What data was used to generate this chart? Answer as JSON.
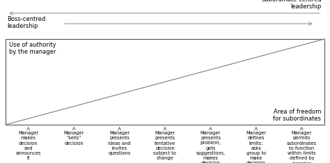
{
  "boss_label": "Boss-centred\nleadership",
  "subordinate_label": "Subordinate-centred\nleadership",
  "authority_label": "Use of authority\nby the manager",
  "freedom_label": "Area of freedom\nfor subordinates",
  "arrow_color": "#888888",
  "box_edge_color": "#555555",
  "bg_color": "#ffffff",
  "text_color": "#000000",
  "columns": [
    {
      "label": "Manager\nmakes\ndecision\nand\nannounces\nit"
    },
    {
      "label": "Manager\n“sells”\ndecision"
    },
    {
      "label": "Manager\npresents\nideas and\ninvites\nquestions"
    },
    {
      "label": "Manager\npresents\ntentative\ndecision\nsubject to\nchange"
    },
    {
      "label": "Manager\npresents\nproblem,\ngets\nsuggestions,\nmakes\ndecision"
    },
    {
      "label": "Manager\ndefines\nlimits:\nasks\ngroup to\nmake\ndecision"
    },
    {
      "label": "Manager\npermits\nsubordinates\nto function\nwithin limits\ndefined by\nsuperior"
    }
  ],
  "n_cols": 7,
  "upper_arrow_color": "#999999",
  "diag_line_color": "#888888",
  "col_arrow_color": "#666666"
}
